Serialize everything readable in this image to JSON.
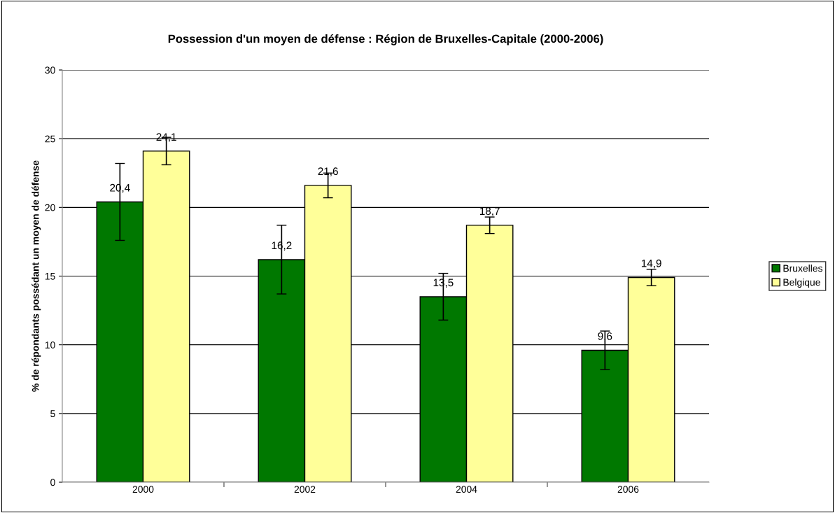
{
  "chart_data": {
    "type": "bar",
    "title": "Possession d'un moyen de défense : Région de Bruxelles-Capitale (2000-2006)",
    "ylabel": "% de répondants possédant un moyen de défense",
    "categories": [
      "2000",
      "2002",
      "2004",
      "2006"
    ],
    "series": [
      {
        "name": "Bruxelles",
        "color": "#007800",
        "values": [
          20.4,
          16.2,
          13.5,
          9.6
        ],
        "errors": [
          2.8,
          2.5,
          1.7,
          1.4
        ],
        "value_labels": [
          "20,4",
          "16,2",
          "13,5",
          "9,6"
        ]
      },
      {
        "name": "Belgique",
        "color": "#ffff99",
        "values": [
          24.1,
          21.6,
          18.7,
          14.9
        ],
        "errors": [
          1.0,
          0.9,
          0.6,
          0.6
        ],
        "value_labels": [
          "24,1",
          "21,6",
          "18,7",
          "14,9"
        ]
      }
    ],
    "ylim": [
      0,
      30
    ],
    "yticks": [
      0,
      5,
      10,
      15,
      20,
      25,
      30
    ],
    "grid": "y",
    "legend": "right"
  }
}
